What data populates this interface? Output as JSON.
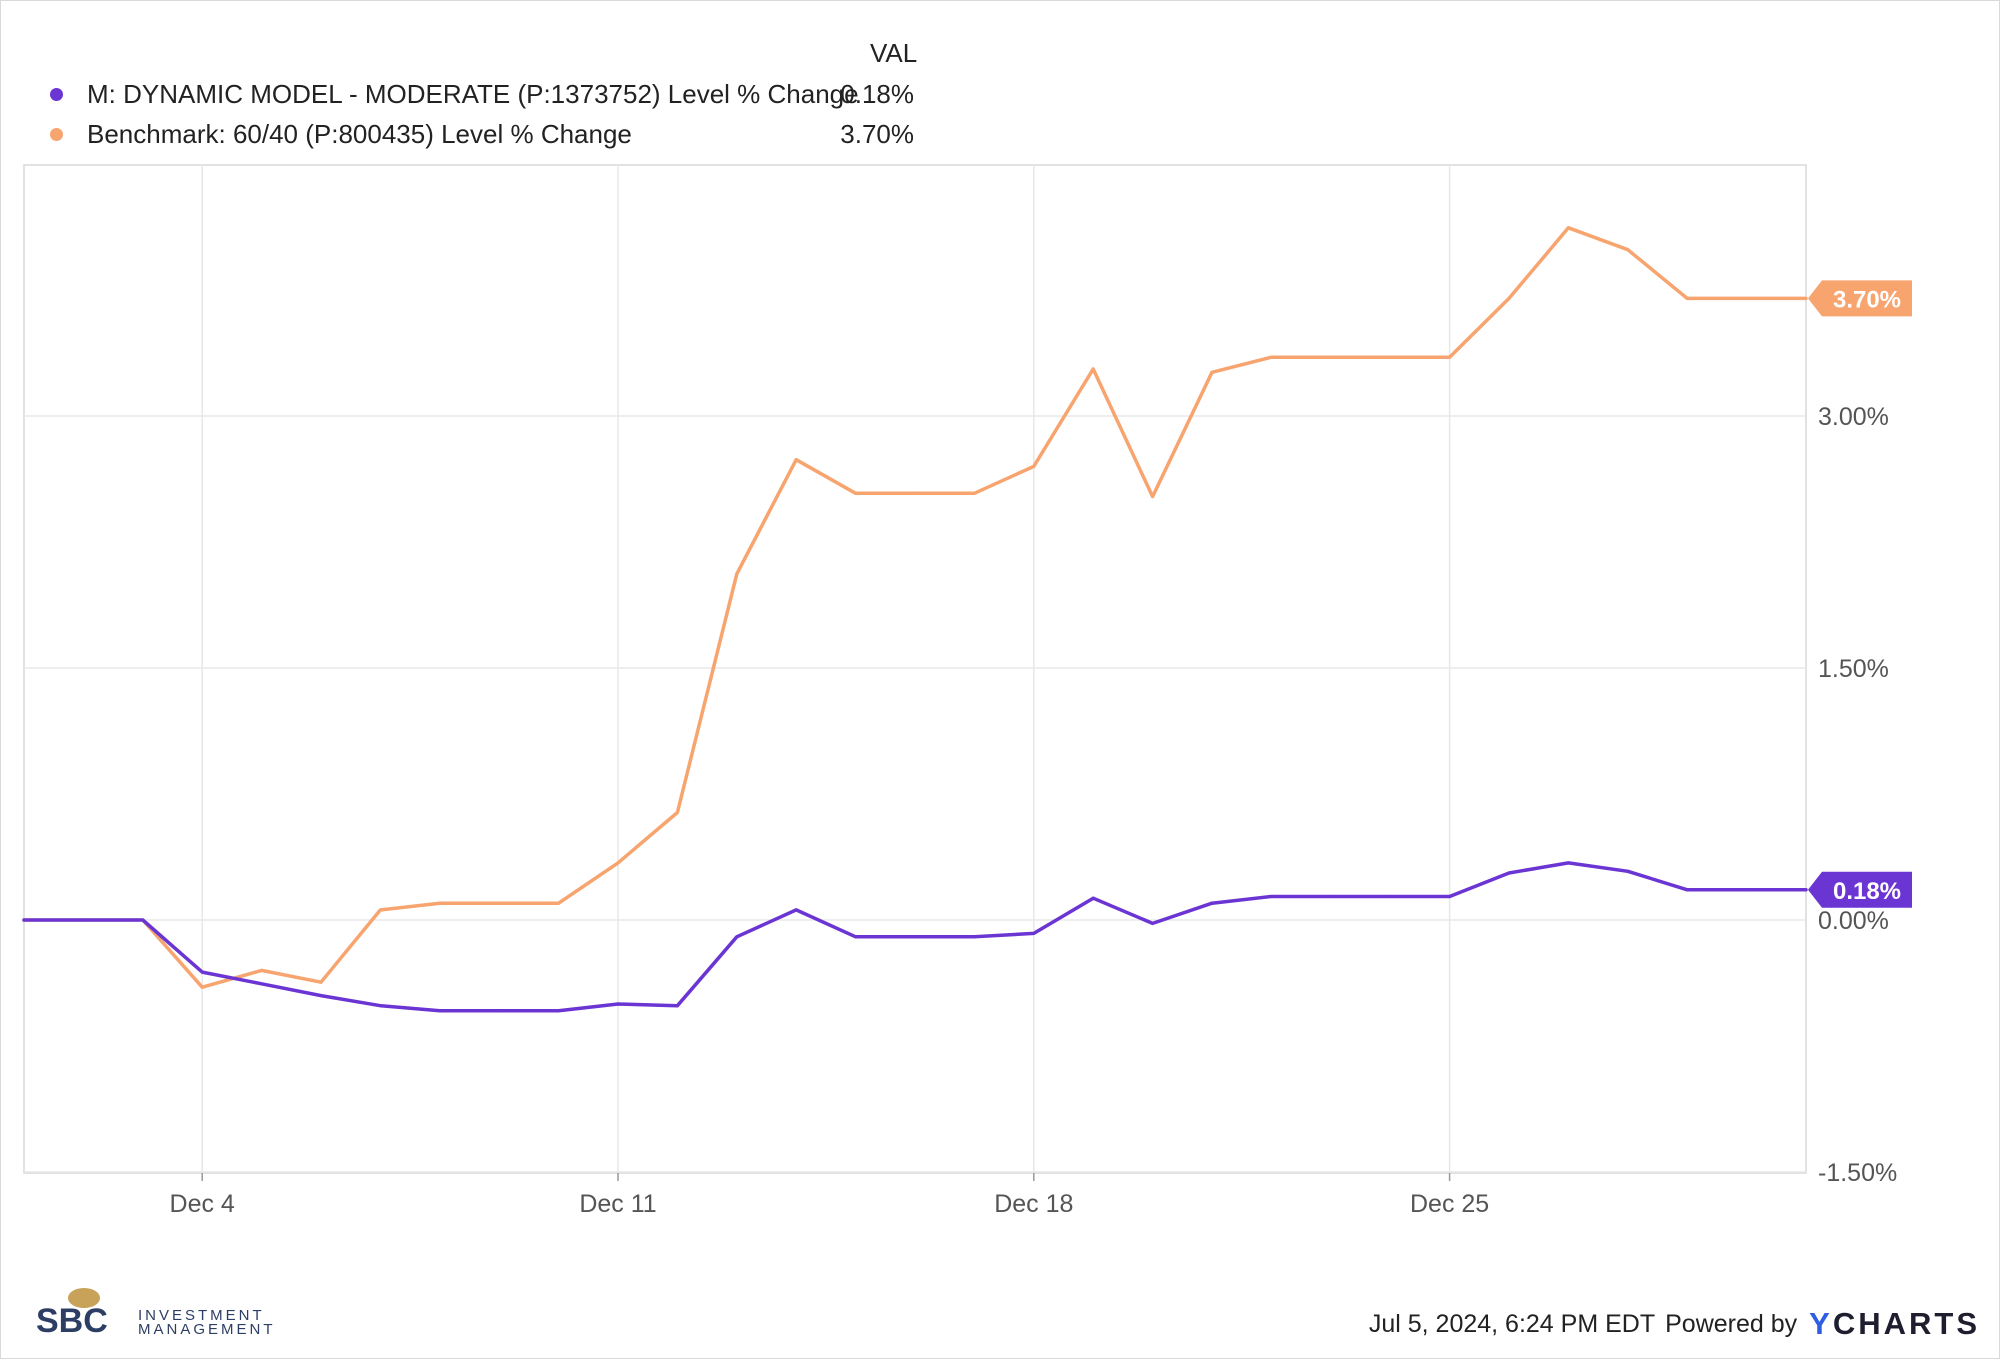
{
  "legend": {
    "header": "VAL",
    "items": [
      {
        "name": "M: DYNAMIC MODEL - MODERATE (P:1373752) Level % Change",
        "value": "0.18%",
        "color": "#6a35d3"
      },
      {
        "name": "Benchmark: 60/40 (P:800435) Level % Change",
        "value": "3.70%",
        "color": "#f7a46f"
      }
    ]
  },
  "chart_data": {
    "type": "line",
    "x_labels": [
      "Dec 4",
      "Dec 11",
      "Dec 18",
      "Dec 25"
    ],
    "x_label_days": [
      4,
      11,
      18,
      25
    ],
    "x": [
      "Dec 1",
      "Dec 2",
      "Dec 3",
      "Dec 4",
      "Dec 5",
      "Dec 6",
      "Dec 7",
      "Dec 8",
      "Dec 9",
      "Dec 10",
      "Dec 11",
      "Dec 12",
      "Dec 13",
      "Dec 14",
      "Dec 15",
      "Dec 16",
      "Dec 17",
      "Dec 18",
      "Dec 19",
      "Dec 20",
      "Dec 21",
      "Dec 22",
      "Dec 23",
      "Dec 24",
      "Dec 25",
      "Dec 26",
      "Dec 27",
      "Dec 28",
      "Dec 29",
      "Dec 30",
      "Dec 31"
    ],
    "x_days": [
      1,
      2,
      3,
      4,
      5,
      6,
      7,
      8,
      9,
      10,
      11,
      12,
      13,
      14,
      15,
      16,
      17,
      18,
      19,
      20,
      21,
      22,
      23,
      24,
      25,
      26,
      27,
      28,
      29,
      30,
      31
    ],
    "x_range": [
      1,
      31
    ],
    "series": [
      {
        "name": "M: DYNAMIC MODEL - MODERATE (P:1373752) Level % Change",
        "color": "#6a35d3",
        "end_label": "0.18%",
        "values": [
          0,
          0,
          0,
          -0.31,
          -0.38,
          -0.45,
          -0.51,
          -0.54,
          -0.54,
          -0.54,
          -0.5,
          -0.51,
          -0.1,
          0.06,
          -0.1,
          -0.1,
          -0.1,
          -0.08,
          0.13,
          -0.02,
          0.1,
          0.14,
          0.14,
          0.14,
          0.14,
          0.28,
          0.34,
          0.29,
          0.18,
          0.18,
          0.18
        ]
      },
      {
        "name": "Benchmark: 60/40 (P:800435) Level % Change",
        "color": "#f7a46f",
        "end_label": "3.70%",
        "values": [
          0,
          0,
          0,
          -0.4,
          -0.3,
          -0.37,
          0.06,
          0.1,
          0.1,
          0.1,
          0.34,
          0.64,
          2.06,
          2.74,
          2.54,
          2.54,
          2.54,
          2.7,
          3.28,
          2.52,
          3.26,
          3.35,
          3.35,
          3.35,
          3.35,
          3.7,
          4.12,
          3.99,
          3.7,
          3.7,
          3.7
        ]
      }
    ],
    "y_ticks": [
      3.0,
      1.5,
      0.0,
      -1.5
    ],
    "y_tick_labels": [
      "3.00%",
      "1.50%",
      "0.00%",
      "-1.50%"
    ],
    "ylim": [
      -1.5,
      4.5
    ],
    "grid": true,
    "legend_position": "top-left"
  },
  "footer": {
    "logo_text_main": "SBC",
    "logo_text_line1": "INVESTMENT",
    "logo_text_line2": "MANAGEMENT",
    "timestamp": "Jul 5, 2024, 6:24 PM EDT",
    "powered_by": "Powered by",
    "brand_y": "Y",
    "brand_rest": "CHARTS"
  }
}
